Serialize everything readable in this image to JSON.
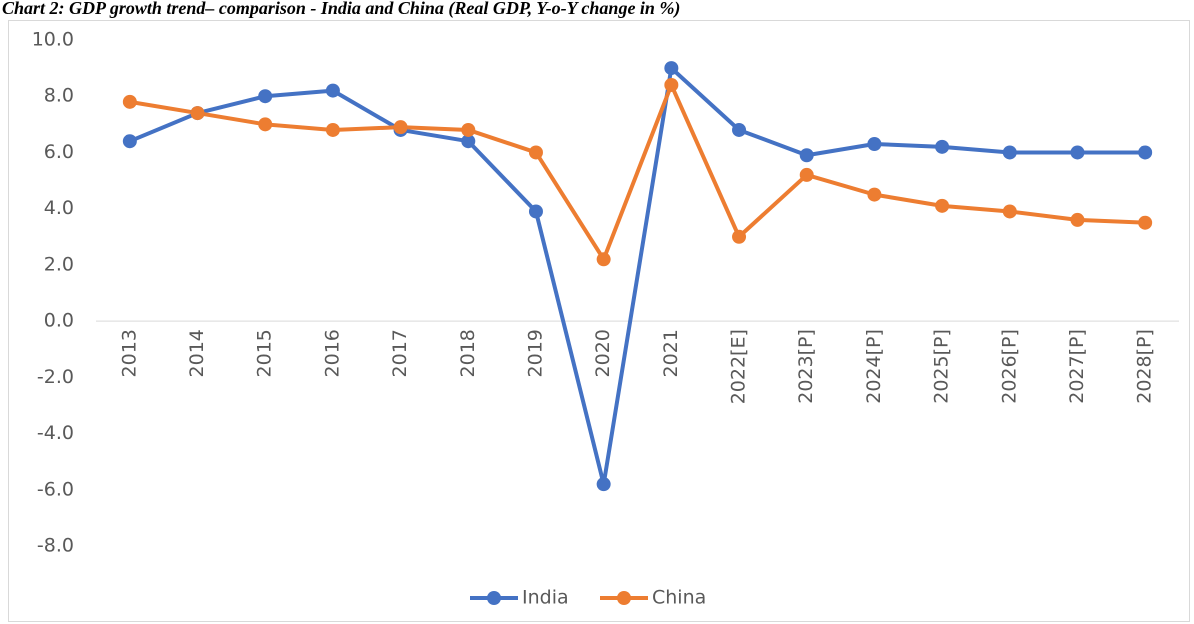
{
  "chart_data": {
    "type": "line",
    "title": "Chart 2: GDP growth trend– comparison - India and China (Real GDP, Y-o-Y change in %)",
    "categories": [
      "2013",
      "2014",
      "2015",
      "2016",
      "2017",
      "2018",
      "2019",
      "2020",
      "2021",
      "2022[E]",
      "2023[P]",
      "2024[P]",
      "2025[P]",
      "2026[P]",
      "2027[P]",
      "2028[P]"
    ],
    "series": [
      {
        "name": "India",
        "color": "#4472c4",
        "values": [
          6.4,
          7.4,
          8.0,
          8.2,
          6.8,
          6.4,
          3.9,
          -5.8,
          9.0,
          6.8,
          5.9,
          6.3,
          6.2,
          6.0,
          6.0,
          6.0
        ]
      },
      {
        "name": "China",
        "color": "#ed7d31",
        "values": [
          7.8,
          7.4,
          7.0,
          6.8,
          6.9,
          6.8,
          6.0,
          2.2,
          8.4,
          3.0,
          5.2,
          4.5,
          4.1,
          3.9,
          3.6,
          3.5
        ]
      }
    ],
    "ylim": [
      -8,
      10
    ],
    "yticks": [
      {
        "value": -8,
        "label": "-8.0"
      },
      {
        "value": -6,
        "label": "-6.0"
      },
      {
        "value": -4,
        "label": "-4.0"
      },
      {
        "value": -2,
        "label": "-2.0"
      },
      {
        "value": 0,
        "label": "0.0"
      },
      {
        "value": 2,
        "label": "2.0"
      },
      {
        "value": 4,
        "label": "4.0"
      },
      {
        "value": 6,
        "label": "6.0"
      },
      {
        "value": 8,
        "label": "8.0"
      },
      {
        "value": 10,
        "label": "10.0"
      }
    ],
    "grid": false,
    "legend": "bottom"
  }
}
